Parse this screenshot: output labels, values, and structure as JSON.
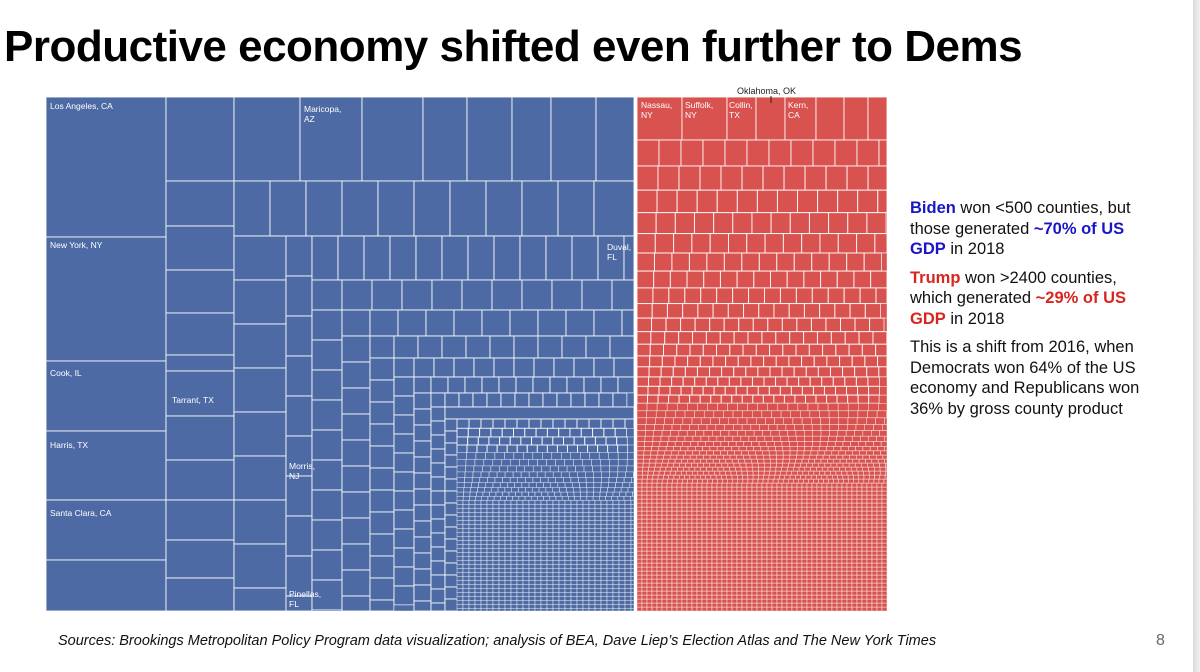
{
  "slide": {
    "title": "Productive economy shifted even further to Dems",
    "sources": "Sources: Brookings Metropolitan Policy Program data visualization; analysis of BEA, Dave Liep’s Election Atlas and The New York Times",
    "page_number": "8"
  },
  "panel": {
    "biden_name": "Biden",
    "biden_text1": " won <500 counties, but those generated ",
    "biden_highlight": "~70% of US GDP",
    "biden_text2": " in 2018",
    "trump_name": "Trump",
    "trump_text1": " won >2400 counties, which generated ",
    "trump_highlight": "~29% of US GDP",
    "trump_text2": " in 2018",
    "shift_text": "This is a shift from 2016, when Democrats won 64% of the US economy and Republicans won 36% by gross county product"
  },
  "colors": {
    "democrat": "#4d6aa4",
    "republican": "#d8524f",
    "blue_text": "#1a16c8",
    "red_text": "#d8261e"
  },
  "chart_data": {
    "type": "treemap",
    "title": "",
    "series": [
      {
        "party": "Democrat",
        "share_of_gdp_percent": 70,
        "labeled_counties": [
          "Los Angeles, CA",
          "Maricopa, AZ",
          "New York, NY",
          "Cook, IL",
          "Harris, TX",
          "Santa Clara, CA",
          "Tarrant, TX",
          "Duval, FL",
          "Morris, NJ",
          "Pinellas, FL"
        ]
      },
      {
        "party": "Republican",
        "share_of_gdp_percent": 29,
        "labeled_counties": [
          "Nassau, NY",
          "Suffolk, NY",
          "Collin, TX",
          "Kern, CA",
          "Oklahoma, OK"
        ]
      }
    ]
  }
}
